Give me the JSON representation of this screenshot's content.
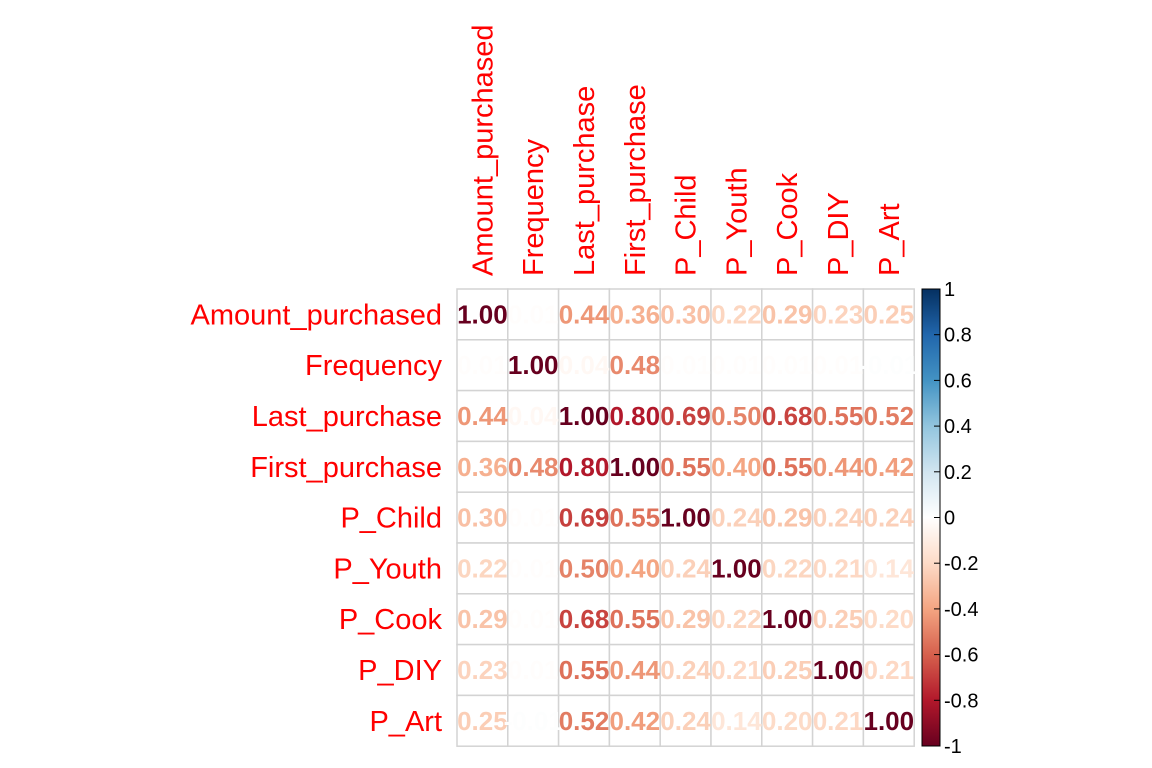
{
  "chart_data": {
    "type": "heatmap",
    "variables": [
      "Amount_purchased",
      "Frequency",
      "Last_purchase",
      "First_purchase",
      "P_Child",
      "P_Youth",
      "P_Cook",
      "P_DIY",
      "P_Art"
    ],
    "values": [
      [
        1.0,
        0.01,
        0.44,
        0.36,
        0.3,
        0.22,
        0.29,
        0.23,
        0.25
      ],
      [
        0.01,
        1.0,
        0.04,
        0.48,
        0.01,
        0.01,
        0.01,
        0.01,
        -0.01
      ],
      [
        0.44,
        0.04,
        1.0,
        0.8,
        0.69,
        0.5,
        0.68,
        0.55,
        0.52
      ],
      [
        0.36,
        0.48,
        0.8,
        1.0,
        0.55,
        0.4,
        0.55,
        0.44,
        0.42
      ],
      [
        0.3,
        0.01,
        0.69,
        0.55,
        1.0,
        0.24,
        0.29,
        0.24,
        0.24
      ],
      [
        0.22,
        0.01,
        0.5,
        0.4,
        0.24,
        1.0,
        0.22,
        0.21,
        0.14
      ],
      [
        0.29,
        0.01,
        0.68,
        0.55,
        0.29,
        0.22,
        1.0,
        0.25,
        0.2
      ],
      [
        0.23,
        0.01,
        0.55,
        0.44,
        0.24,
        0.21,
        0.25,
        1.0,
        0.21
      ],
      [
        0.25,
        -0.01,
        0.52,
        0.42,
        0.24,
        0.14,
        0.2,
        0.21,
        1.0
      ]
    ],
    "number_format_digits": 2,
    "label_color": "#ff0000",
    "grid_color": "#d3d3d3",
    "colorscale": [
      "#67001f",
      "#b2182b",
      "#d6604d",
      "#f4a582",
      "#fddbc7",
      "#ffffff",
      "#d1e5f0",
      "#92c5de",
      "#4393c3",
      "#2166ac",
      "#053061"
    ],
    "legend": {
      "range": [
        -1,
        1
      ],
      "ticks": [
        "1",
        "0.8",
        "0.6",
        "0.4",
        "0.2",
        "0",
        "-0.2",
        "-0.4",
        "-0.6",
        "-0.8",
        "-1"
      ]
    }
  }
}
